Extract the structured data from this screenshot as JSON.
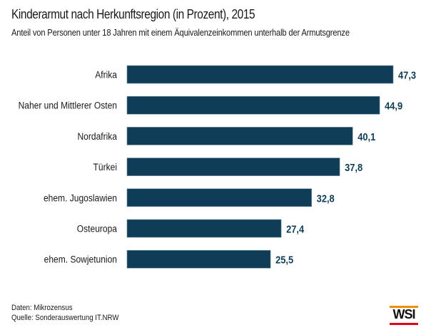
{
  "header": {
    "title": "Kinderarmut nach Herkunftsregion (in Prozent), 2015",
    "subtitle": "Anteil von Personen unter 18 Jahren mit einem Äquivalenzeinkommen unterhalb der Armutsgrenze"
  },
  "chart_data": {
    "type": "bar",
    "orientation": "horizontal",
    "title": "Kinderarmut nach Herkunftsregion (in Prozent), 2015",
    "subtitle": "Anteil von Personen unter 18 Jahren mit einem Äquivalenzeinkommen unterhalb der Armutsgrenze",
    "categories": [
      "Afrika",
      "Naher und Mittlerer Osten",
      "Nordafrika",
      "Türkei",
      "ehem. Jugoslawien",
      "Osteuropa",
      "ehem. Sowjetunion"
    ],
    "values": [
      47.3,
      44.9,
      40.1,
      37.8,
      32.8,
      27.4,
      25.5
    ],
    "value_labels": [
      "47,3",
      "44,9",
      "40,1",
      "37,8",
      "32,8",
      "27,4",
      "25,5"
    ],
    "xlabel": "",
    "ylabel": "",
    "xlim": [
      0,
      47.3
    ],
    "grid": false,
    "bar_color": "#0f3d57",
    "label_color": "#0f3d57"
  },
  "footer": {
    "data_note": "Daten: Mikrozensus",
    "source_note": "Quelle: Sonderauswertung IT.NRW"
  },
  "logo": {
    "text": "WSI",
    "accent_top": "#f28c00",
    "accent_bottom": "#e2001a"
  }
}
